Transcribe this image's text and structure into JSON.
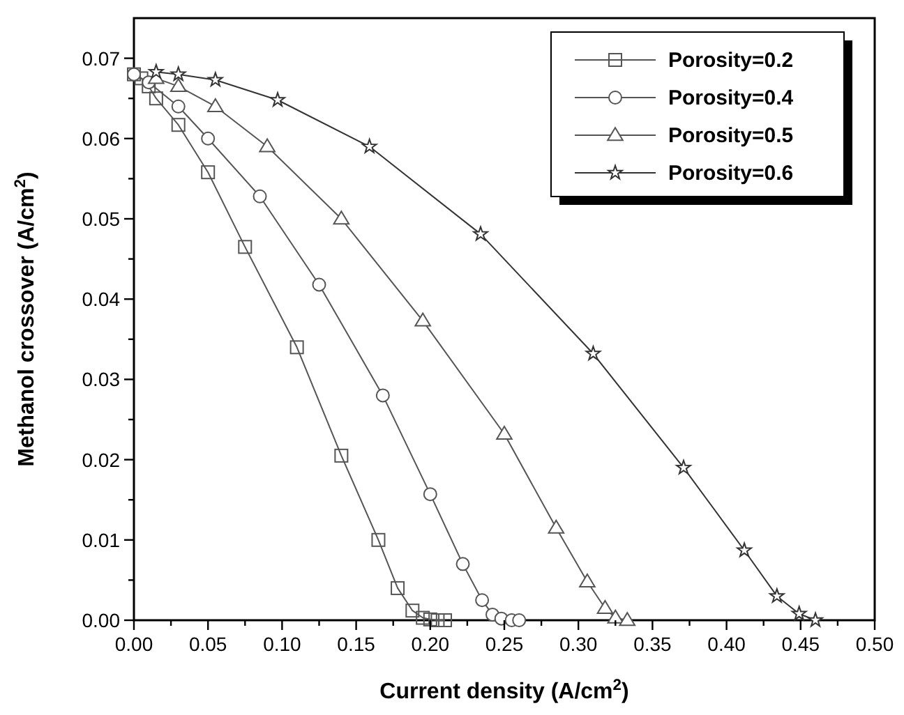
{
  "chart_data": {
    "type": "line",
    "xlabel": "Current density (A/cm$^{2}$)",
    "ylabel": "Methanol crossover (A/cm$^{2}$)",
    "xlim": [
      0,
      0.5
    ],
    "ylim": [
      0,
      0.075
    ],
    "xticks": [
      {
        "value": 0,
        "label": "0.00"
      },
      {
        "value": 0.025,
        "label": null
      },
      {
        "value": 0.05,
        "label": "0.05"
      },
      {
        "value": 0.075,
        "label": null
      },
      {
        "value": 0.1,
        "label": "0.10"
      },
      {
        "value": 0.125,
        "label": null
      },
      {
        "value": 0.15,
        "label": "0.15"
      },
      {
        "value": 0.175,
        "label": null
      },
      {
        "value": 0.2,
        "label": "0.20"
      },
      {
        "value": 0.225,
        "label": null
      },
      {
        "value": 0.25,
        "label": "0.25"
      },
      {
        "value": 0.275,
        "label": null
      },
      {
        "value": 0.3,
        "label": "0.30"
      },
      {
        "value": 0.325,
        "label": null
      },
      {
        "value": 0.35,
        "label": "0.35"
      },
      {
        "value": 0.375,
        "label": null
      },
      {
        "value": 0.4,
        "label": "0.40"
      },
      {
        "value": 0.425,
        "label": null
      },
      {
        "value": 0.45,
        "label": "0.45"
      },
      {
        "value": 0.475,
        "label": null
      },
      {
        "value": 0.5,
        "label": "0.50"
      }
    ],
    "yticks": [
      {
        "value": 0,
        "label": "0.00"
      },
      {
        "value": 0.005,
        "label": null
      },
      {
        "value": 0.01,
        "label": "0.01"
      },
      {
        "value": 0.015,
        "label": null
      },
      {
        "value": 0.02,
        "label": "0.02"
      },
      {
        "value": 0.025,
        "label": null
      },
      {
        "value": 0.03,
        "label": "0.03"
      },
      {
        "value": 0.035,
        "label": null
      },
      {
        "value": 0.04,
        "label": "0.04"
      },
      {
        "value": 0.045,
        "label": null
      },
      {
        "value": 0.05,
        "label": "0.05"
      },
      {
        "value": 0.055,
        "label": null
      },
      {
        "value": 0.06,
        "label": "0.06"
      },
      {
        "value": 0.065,
        "label": null
      },
      {
        "value": 0.07,
        "label": "0.07"
      }
    ],
    "grid": false,
    "legend": "top right",
    "line_style": "solid",
    "series": [
      {
        "name": "Porosity=0.2",
        "color": "#555555",
        "marker": "square",
        "x": [
          0,
          0.005,
          0.01,
          0.015,
          0.03,
          0.05,
          0.075,
          0.11,
          0.14,
          0.165,
          0.178,
          0.188,
          0.195,
          0.2,
          0.205,
          0.21
        ],
        "values": [
          0.068,
          0.0675,
          0.0665,
          0.065,
          0.0617,
          0.0558,
          0.0465,
          0.034,
          0.0205,
          0.01,
          0.004,
          0.0012,
          0.0003,
          0.0001,
          0,
          0
        ]
      },
      {
        "name": "Porosity=0.4",
        "color": "#555555",
        "marker": "circle",
        "x": [
          0,
          0.01,
          0.03,
          0.05,
          0.085,
          0.125,
          0.168,
          0.2,
          0.222,
          0.235,
          0.242,
          0.248,
          0.255,
          0.26
        ],
        "values": [
          0.068,
          0.067,
          0.064,
          0.06,
          0.0528,
          0.0418,
          0.028,
          0.0157,
          0.007,
          0.0025,
          0.0007,
          0.0002,
          0,
          0
        ]
      },
      {
        "name": "Porosity=0.5",
        "color": "#555555",
        "marker": "triangle",
        "x": [
          0.015,
          0.03,
          0.055,
          0.09,
          0.14,
          0.195,
          0.25,
          0.285,
          0.306,
          0.318,
          0.325,
          0.333
        ],
        "values": [
          0.0675,
          0.0665,
          0.064,
          0.059,
          0.05,
          0.0373,
          0.0232,
          0.0115,
          0.0048,
          0.0015,
          0.0003,
          0
        ]
      },
      {
        "name": "Porosity=0.6",
        "color": "#333333",
        "marker": "star",
        "x": [
          0.015,
          0.03,
          0.055,
          0.097,
          0.159,
          0.234,
          0.31,
          0.371,
          0.412,
          0.434,
          0.449,
          0.46
        ],
        "values": [
          0.0683,
          0.068,
          0.0673,
          0.0648,
          0.059,
          0.0481,
          0.0332,
          0.019,
          0.0087,
          0.003,
          0.0008,
          0
        ]
      }
    ]
  }
}
